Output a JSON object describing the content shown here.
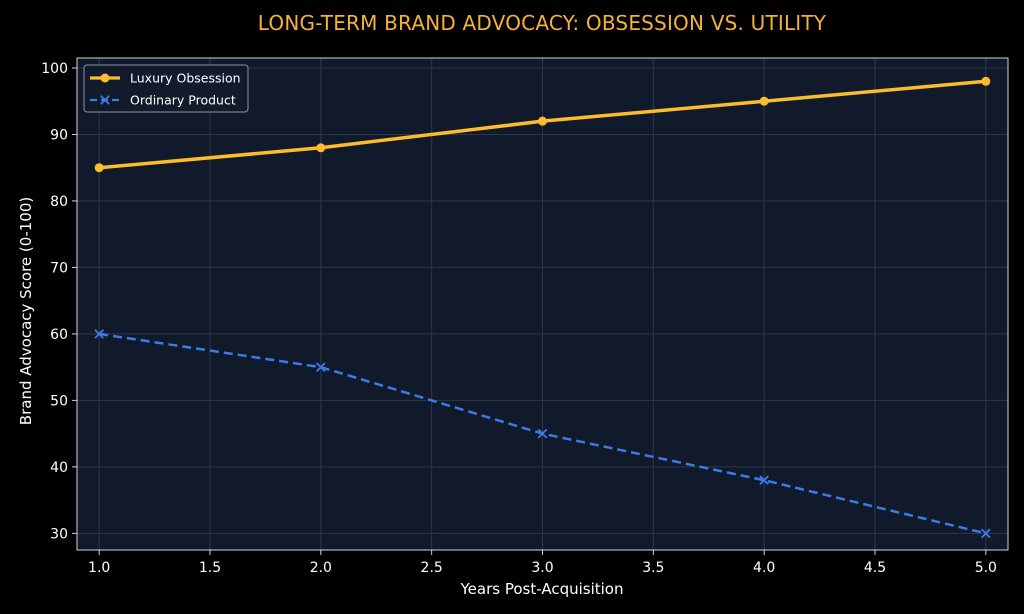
{
  "chart_data": {
    "type": "line",
    "title": "LONG-TERM BRAND ADVOCACY: OBSESSION VS. UTILITY",
    "xlabel": "Years Post-Acquisition",
    "ylabel": "Brand Advocacy Score (0-100)",
    "xlim": [
      0.9,
      5.1
    ],
    "ylim": [
      27.5,
      101.5
    ],
    "x_ticks": [
      "1.0",
      "1.5",
      "2.0",
      "2.5",
      "3.0",
      "3.5",
      "4.0",
      "4.5",
      "5.0"
    ],
    "y_ticks": [
      "30",
      "40",
      "50",
      "60",
      "70",
      "80",
      "90",
      "100"
    ],
    "x": [
      1.0,
      2.0,
      3.0,
      4.0,
      5.0
    ],
    "series": [
      {
        "name": "Luxury Obsession",
        "values": [
          85,
          88,
          92,
          95,
          98
        ],
        "color": "#fbbc2d",
        "style": "solid",
        "marker": "circle"
      },
      {
        "name": "Ordinary Product",
        "values": [
          60,
          55,
          45,
          38,
          30
        ],
        "color": "#3b7be6",
        "style": "dashed",
        "marker": "x"
      }
    ],
    "grid": true,
    "legend_position": "top-left",
    "colors": {
      "background": "#000000",
      "plot_background": "#111a2b",
      "title": "#f5b23a",
      "grid": "#2e384a",
      "axis": "#d0d4dc"
    }
  }
}
